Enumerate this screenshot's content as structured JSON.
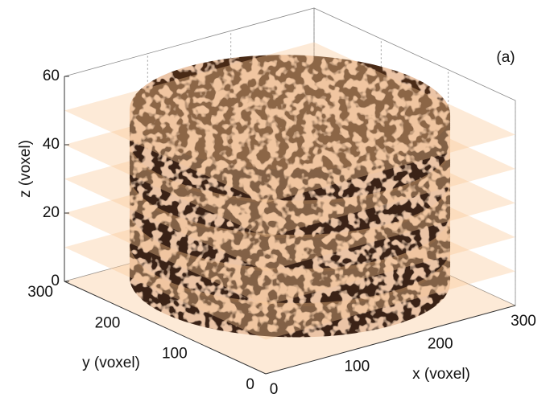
{
  "panel_label": "(a)",
  "axes": {
    "x": {
      "label": "x (voxel)",
      "ticks": [
        0,
        100,
        200,
        300
      ]
    },
    "y": {
      "label": "y (voxel)",
      "ticks": [
        0,
        100,
        200,
        300
      ]
    },
    "z": {
      "label": "z (voxel)",
      "ticks": [
        0,
        20,
        40,
        60
      ]
    }
  }
}
